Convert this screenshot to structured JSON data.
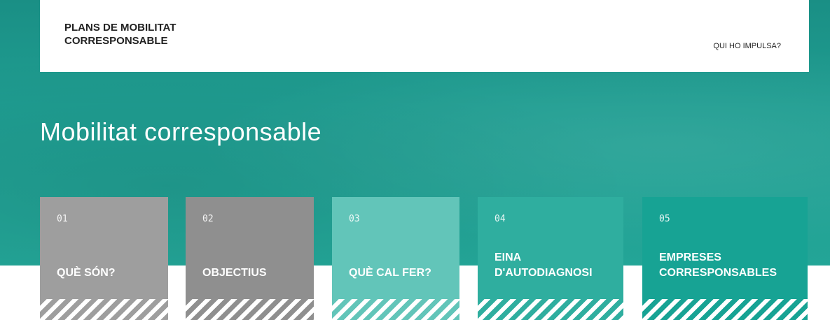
{
  "header": {
    "title_lines": [
      "PLANS DE MOBILITAT",
      "CORRESPONSABLE"
    ],
    "nav": "QUI HO IMPULSA?"
  },
  "hero": {
    "heading": "Mobilitat corresponsable"
  },
  "cards": [
    {
      "number": "01",
      "label_lines": [
        "QUÈ SÓN?"
      ]
    },
    {
      "number": "02",
      "label_lines": [
        "OBJECTIUS"
      ]
    },
    {
      "number": "03",
      "label_lines": [
        "QUÈ CAL FER?"
      ]
    },
    {
      "number": "04",
      "label_lines": [
        "EINA",
        "D'AUTODIAGNOSI"
      ]
    },
    {
      "number": "05",
      "label_lines": [
        "EMPRESES",
        "CORRESPONSABLES"
      ]
    }
  ]
}
